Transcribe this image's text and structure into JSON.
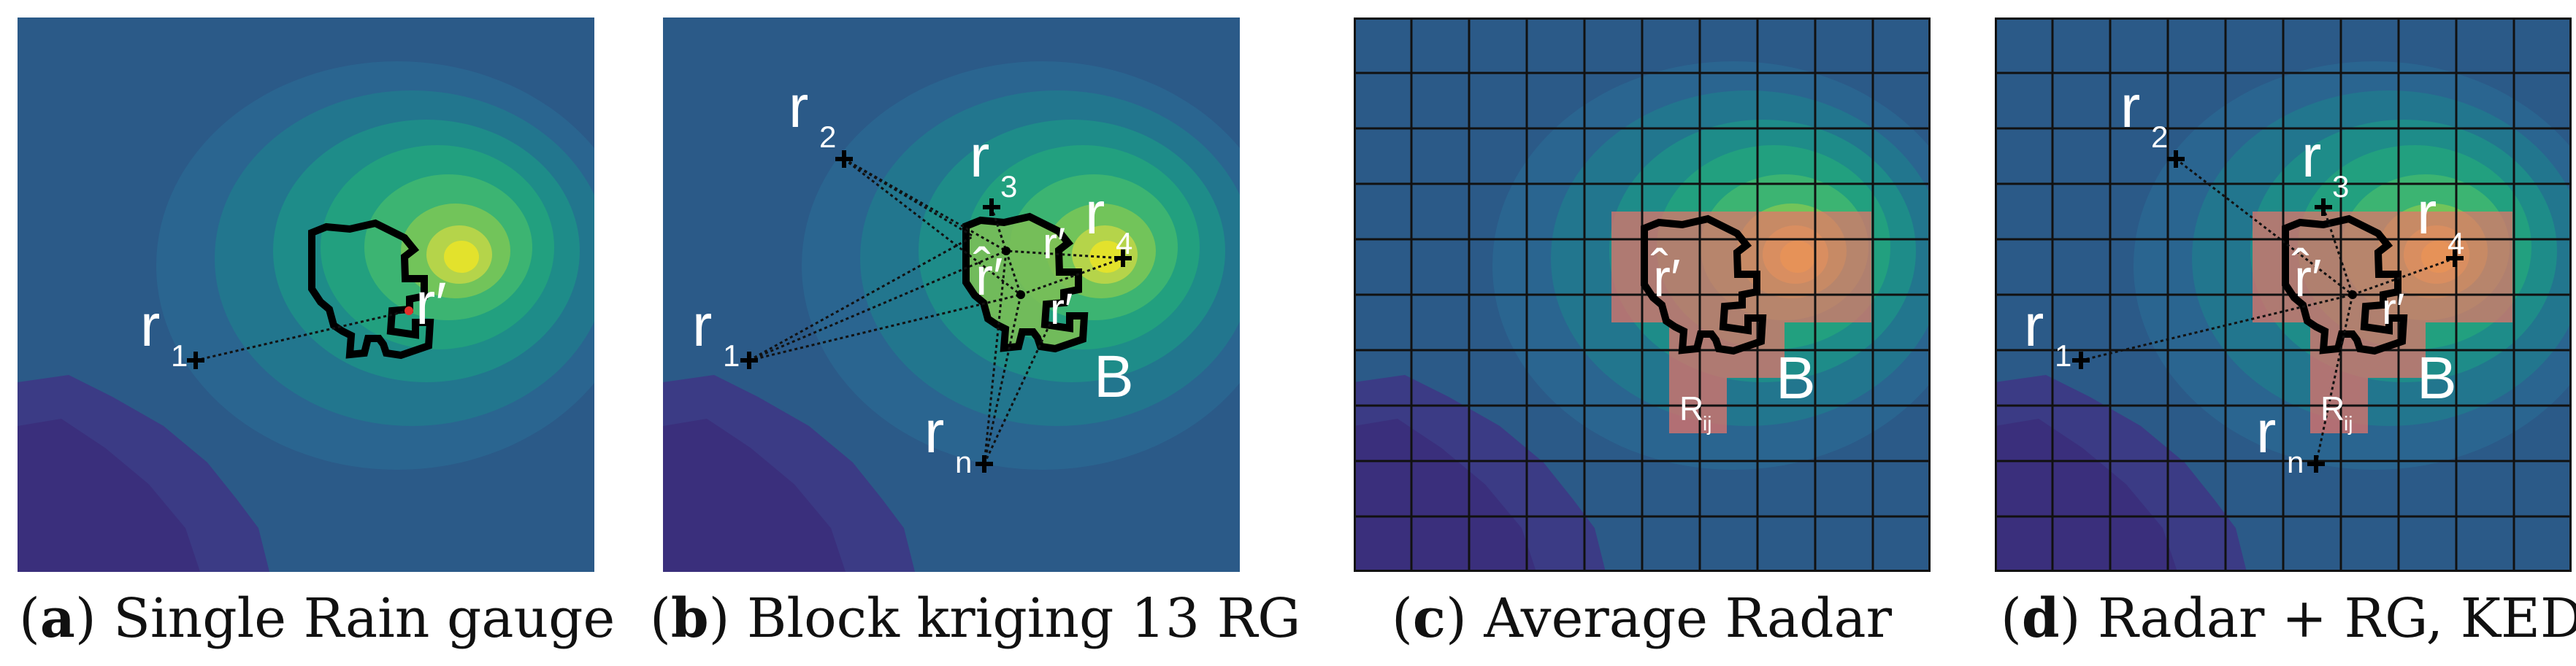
{
  "panels": [
    {
      "letter": "a",
      "caption": "Single Rain gauge",
      "labels": {
        "r1": "r",
        "r1_sub": "1",
        "rp": "r′"
      }
    },
    {
      "letter": "b",
      "caption": "Block kriging 13 RG",
      "labels": {
        "r1": "r",
        "r1_sub": "1",
        "r2": "r",
        "r2_sub": "2",
        "r3": "r",
        "r3_sub": "3",
        "r4": "r",
        "r4_sub": "4",
        "rn": "r",
        "rn_sub": "n",
        "rhat": "r̂′",
        "rp_a": "r′",
        "rp_b": "r′",
        "B": "B"
      }
    },
    {
      "letter": "c",
      "caption": "Average Radar",
      "labels": {
        "rhat": "r̂′",
        "B": "B",
        "R": "R",
        "R_sub": "ij"
      }
    },
    {
      "letter": "d",
      "caption": "Radar + RG, KED",
      "labels": {
        "r1": "r",
        "r1_sub": "1",
        "r2": "r",
        "r2_sub": "2",
        "r3": "r",
        "r3_sub": "3",
        "r4": "r",
        "r4_sub": "4",
        "rn": "r",
        "rn_sub": "n",
        "rhat": "r̂′",
        "rp": "r′",
        "B": "B",
        "R": "R",
        "R_sub": "ij"
      }
    }
  ],
  "colors": {
    "background_field": "#2b5d8a",
    "low": "#3b3d87",
    "mid_1": "#2d728f",
    "mid_2": "#1f8f88",
    "mid_3": "#27a77c",
    "high_1": "#5ec062",
    "high_2": "#a8d243",
    "peak": "#e7e42a",
    "radar_overlay": "#e8736a",
    "catchment_outline": "#000000",
    "marker": "#000000",
    "label": "#ffffff"
  }
}
